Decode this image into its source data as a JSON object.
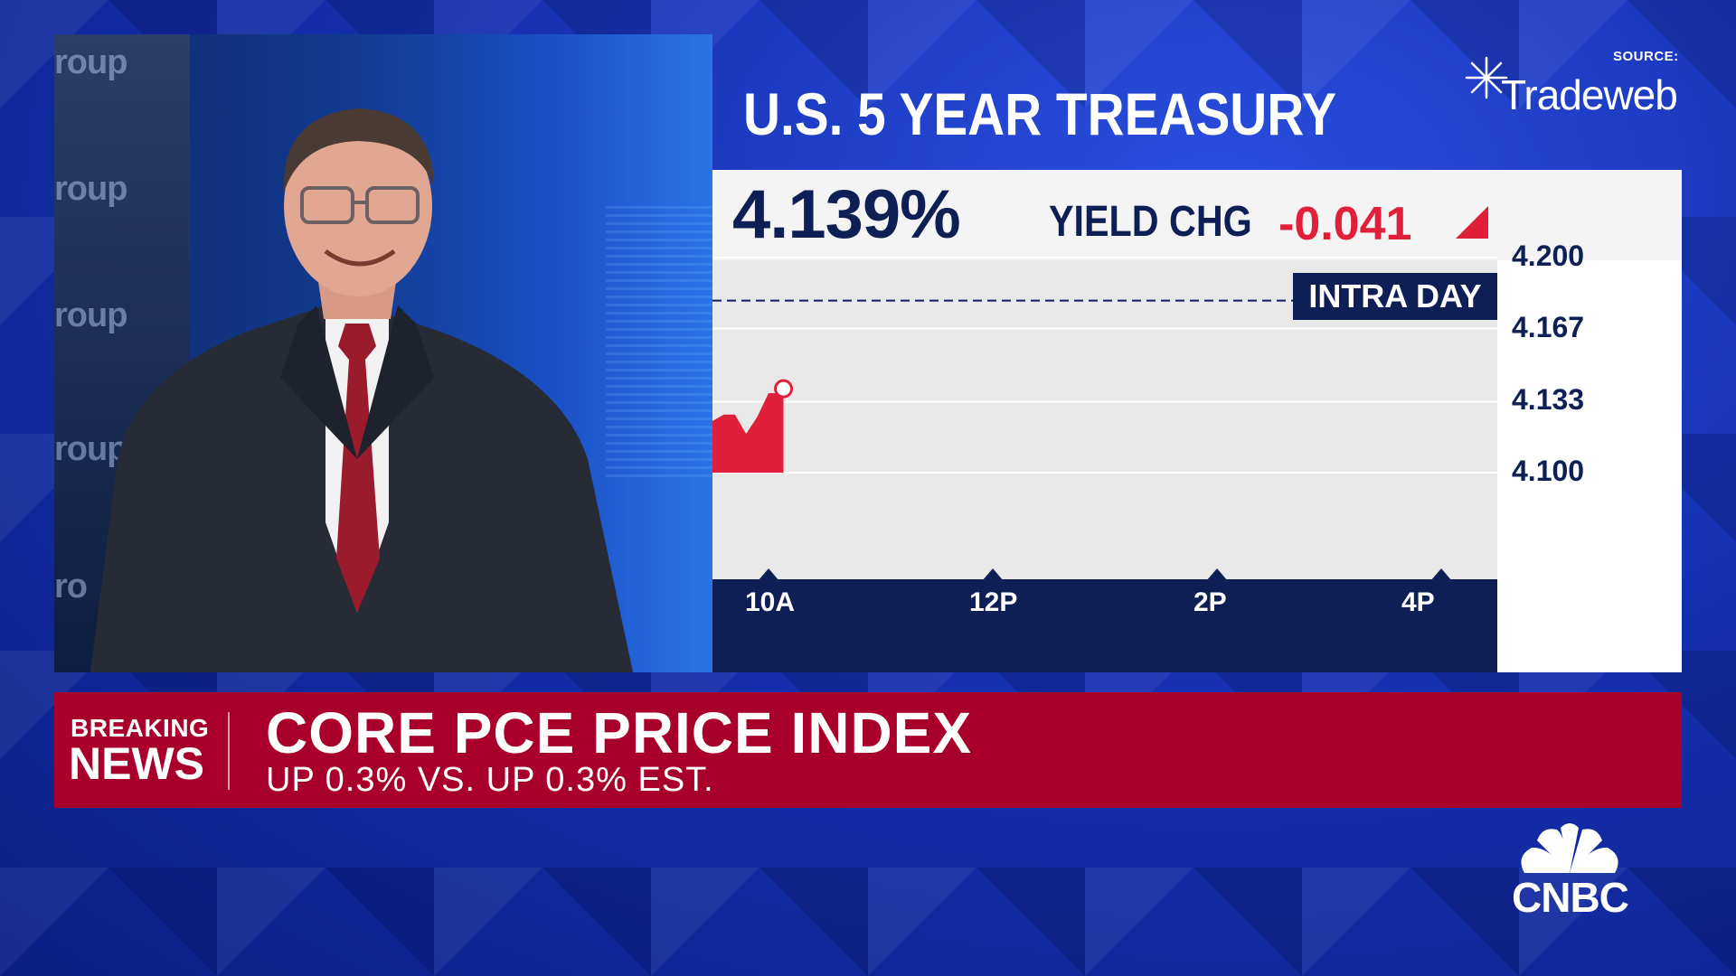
{
  "chart_title": "U.S. 5 YEAR TREASURY",
  "source": {
    "label": "SOURCE:",
    "name": "Tradeweb"
  },
  "quote": {
    "yield_pct": "4.139%",
    "change_label": "YIELD CHG",
    "change_value": "-0.041",
    "direction": "down"
  },
  "badge": "INTRA DAY",
  "chart_data": {
    "type": "area",
    "title": "U.S. 5 YEAR TREASURY",
    "x_tick_labels": [
      "10A",
      "12P",
      "2P",
      "4P"
    ],
    "y_tick_labels": [
      "4.200",
      "4.167",
      "4.133",
      "4.100"
    ],
    "ylim": [
      4.1,
      4.2
    ],
    "xlim": [
      "9:30",
      "16:30"
    ],
    "reference_line": 4.18,
    "series": [
      {
        "color": "#e0203a",
        "x": [
          "9:30",
          "9:36",
          "9:42",
          "9:48",
          "9:54",
          "10:00",
          "10:06",
          "10:08"
        ],
        "y": [
          4.124,
          4.127,
          4.127,
          4.118,
          4.126,
          4.137,
          4.137,
          4.139
        ]
      }
    ],
    "last_point": {
      "x": "10:08",
      "y": 4.139
    },
    "grid": true
  },
  "breaking": {
    "kicker_line1": "BREAKING",
    "kicker_line2": "NEWS",
    "headline": "CORE PCE PRICE INDEX",
    "subhead": "UP 0.3% VS. UP 0.3% EST."
  },
  "network_logo": "CNBC",
  "background_wall_text": [
    "roup",
    "roup",
    "roup",
    "roup",
    "ro"
  ],
  "colors": {
    "navy": "#0e1f55",
    "red": "#e0203a",
    "news_red": "#a8002a",
    "background_blue": "#1a2fa8"
  }
}
